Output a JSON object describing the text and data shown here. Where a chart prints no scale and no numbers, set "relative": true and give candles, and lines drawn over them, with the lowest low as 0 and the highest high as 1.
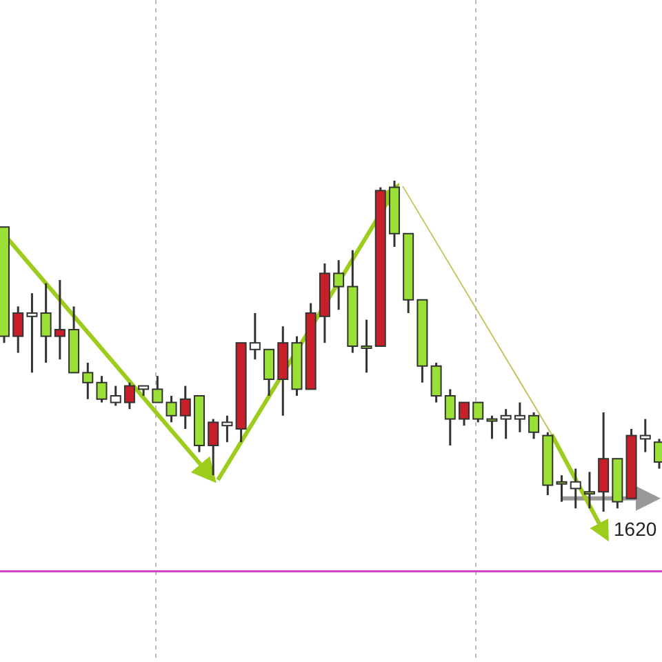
{
  "chart_data": {
    "type": "candlestick",
    "relative": true,
    "categories": [
      null,
      null,
      null,
      null,
      null,
      null,
      null,
      null,
      null,
      null,
      null,
      null,
      null,
      null,
      null,
      null,
      null,
      null,
      null,
      null,
      null,
      null,
      null,
      null,
      null,
      null,
      null,
      null,
      null,
      null,
      null,
      null,
      null,
      null,
      null,
      null,
      null,
      null,
      null,
      null,
      null,
      null,
      null,
      null,
      null,
      null,
      null,
      null
    ],
    "ohlc": [
      [
        0.86,
        0.86,
        0.51,
        0.53
      ],
      [
        0.53,
        0.62,
        0.48,
        0.6
      ],
      [
        0.6,
        0.66,
        0.42,
        0.59
      ],
      [
        0.6,
        0.69,
        0.45,
        0.53
      ],
      [
        0.53,
        0.7,
        0.46,
        0.55
      ],
      [
        0.55,
        0.62,
        0.42,
        0.42
      ],
      [
        0.42,
        0.45,
        0.34,
        0.39
      ],
      [
        0.39,
        0.41,
        0.33,
        0.34
      ],
      [
        0.35,
        0.38,
        0.32,
        0.33
      ],
      [
        0.33,
        0.39,
        0.31,
        0.38
      ],
      [
        0.38,
        0.38,
        0.35,
        0.37
      ],
      [
        0.37,
        0.41,
        0.33,
        0.33
      ],
      [
        0.33,
        0.35,
        0.27,
        0.29
      ],
      [
        0.29,
        0.38,
        0.25,
        0.34
      ],
      [
        0.35,
        0.35,
        0.18,
        0.2
      ],
      [
        0.2,
        0.28,
        0.11,
        0.27
      ],
      [
        0.27,
        0.29,
        0.21,
        0.26
      ],
      [
        0.25,
        0.51,
        0.21,
        0.51
      ],
      [
        0.51,
        0.6,
        0.46,
        0.49
      ],
      [
        0.49,
        0.49,
        0.35,
        0.4
      ],
      [
        0.4,
        0.56,
        0.29,
        0.51
      ],
      [
        0.51,
        0.53,
        0.35,
        0.37
      ],
      [
        0.37,
        0.63,
        0.37,
        0.6
      ],
      [
        0.59,
        0.75,
        0.51,
        0.72
      ],
      [
        0.72,
        0.76,
        0.61,
        0.68
      ],
      [
        0.68,
        0.79,
        0.48,
        0.5
      ],
      [
        0.5,
        0.58,
        0.42,
        0.5
      ],
      [
        0.5,
        0.98,
        0.5,
        0.97
      ],
      [
        0.98,
        1,
        0.8,
        0.84
      ],
      [
        0.84,
        0.84,
        0.6,
        0.64
      ],
      [
        0.64,
        0.64,
        0.39,
        0.44
      ],
      [
        0.44,
        0.45,
        0.33,
        0.35
      ],
      [
        0.35,
        0.37,
        0.2,
        0.28
      ],
      [
        0.28,
        0.33,
        0.26,
        0.33
      ],
      [
        0.33,
        0.33,
        0.27,
        0.28
      ],
      [
        0.28,
        0.29,
        0.22,
        0.28
      ],
      [
        0.29,
        0.31,
        0.22,
        0.28
      ],
      [
        0.29,
        0.33,
        0.24,
        0.28
      ],
      [
        0.29,
        0.3,
        0.22,
        0.24
      ],
      [
        0.23,
        0.24,
        0.05,
        0.08
      ],
      [
        0.09,
        0.11,
        0.03,
        0.09
      ],
      [
        0.09,
        0.13,
        0.01,
        0.07
      ],
      [
        0.06,
        0.12,
        0.01,
        0.06
      ],
      [
        0.06,
        0.3,
        0,
        0.16
      ],
      [
        0.16,
        0.16,
        0.01,
        0.03
      ],
      [
        0.04,
        0.25,
        0.04,
        0.23
      ],
      [
        0.23,
        0.28,
        0.18,
        0.22
      ],
      [
        0.21,
        0.22,
        0.13,
        0.15
      ]
    ],
    "colors": [
      "#9be037",
      "#c8202a",
      "#ffffff",
      "#9be037",
      "#c8202a",
      "#9be037",
      "#9be037",
      "#9be037",
      "#ffffff",
      "#c8202a",
      "#ffffff",
      "#9be037",
      "#9be037",
      "#c8202a",
      "#9be037",
      "#c8202a",
      "#ffffff",
      "#c8202a",
      "#ffffff",
      "#9be037",
      "#c8202a",
      "#9be037",
      "#c8202a",
      "#c8202a",
      "#9be037",
      "#9be037",
      "#9be037",
      "#c8202a",
      "#9be037",
      "#9be037",
      "#9be037",
      "#9be037",
      "#9be037",
      "#c8202a",
      "#9be037",
      "#9be037",
      "#ffffff",
      "#ffffff",
      "#9be037",
      "#9be037",
      "#9be037",
      "#ffffff",
      "#9be037",
      "#c8202a",
      "#9be037",
      "#c8202a",
      "#ffffff",
      "#9be037"
    ],
    "ref_lines": [
      {
        "axis": "y",
        "value": -0.18,
        "color": "#cc44cc"
      }
    ],
    "annotations": [
      {
        "text": "1620",
        "y": 0.04
      }
    ]
  }
}
